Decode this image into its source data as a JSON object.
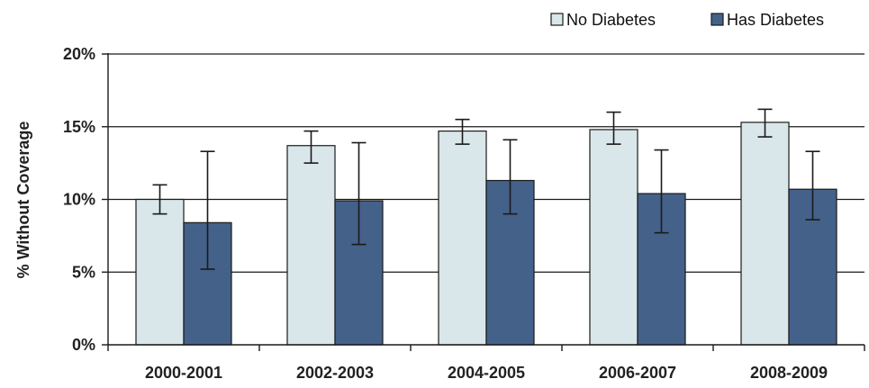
{
  "chart_data": {
    "type": "bar",
    "categories": [
      "2000-2001",
      "2002-2003",
      "2004-2005",
      "2006-2007",
      "2008-2009"
    ],
    "series": [
      {
        "name": "No Diabetes",
        "color": "#d9e7ea",
        "values": [
          10.0,
          13.7,
          14.7,
          14.8,
          15.3
        ],
        "error_low": [
          9.0,
          12.5,
          13.8,
          13.8,
          14.3
        ],
        "error_high": [
          11.0,
          14.7,
          15.5,
          16.0,
          16.2
        ]
      },
      {
        "name": "Has Diabetes",
        "color": "#44618a",
        "values": [
          8.4,
          9.9,
          11.3,
          10.4,
          10.7
        ],
        "error_low": [
          5.2,
          6.9,
          9.0,
          7.7,
          8.6
        ],
        "error_high": [
          13.3,
          13.9,
          14.1,
          13.4,
          13.3
        ]
      }
    ],
    "ylabel": "% Without Coverage",
    "ylim": [
      0,
      20
    ],
    "yticks": [
      0,
      5,
      10,
      15,
      20
    ],
    "ytick_labels": [
      "0%",
      "5%",
      "10%",
      "15%",
      "20%"
    ],
    "grid": true,
    "legend_position": "top-right"
  }
}
